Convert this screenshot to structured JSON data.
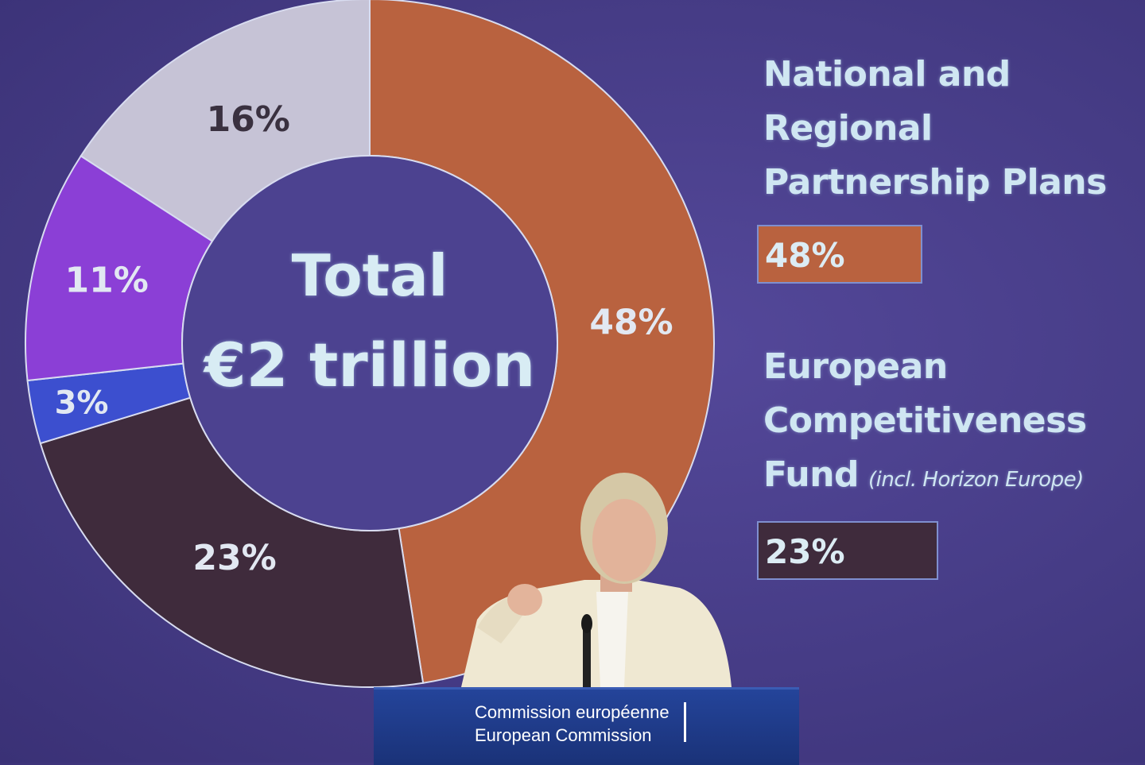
{
  "chart_data": {
    "type": "pie",
    "donut": true,
    "title": "",
    "center_label": [
      "Total",
      "€2 trillion"
    ],
    "slices": [
      {
        "label": "48%",
        "value": 48,
        "color": "#b9623f"
      },
      {
        "label": "23%",
        "value": 23,
        "color": "#3f2b3c"
      },
      {
        "label": "3%",
        "value": 3,
        "color": "#3c4fcf"
      },
      {
        "label": "11%",
        "value": 11,
        "color": "#8b3fd6"
      },
      {
        "label": "16%",
        "value": 16,
        "color": "#c6c3d6"
      }
    ],
    "legend": [
      {
        "title": "National and Regional Partnership Plans",
        "lines": [
          "National and",
          "Regional",
          "Partnership Plans"
        ],
        "value": "48%",
        "color": "#b9623f"
      },
      {
        "title": "European Competitiveness Fund",
        "lines": [
          "European",
          "Competitiveness",
          "Fund"
        ],
        "note": "(incl. Horizon Europe)",
        "value": "23%",
        "color": "#3f2b3c"
      }
    ]
  },
  "podium": {
    "line1": "Commission européenne",
    "line2": "European Commission",
    "color": "#1f3a8a"
  }
}
